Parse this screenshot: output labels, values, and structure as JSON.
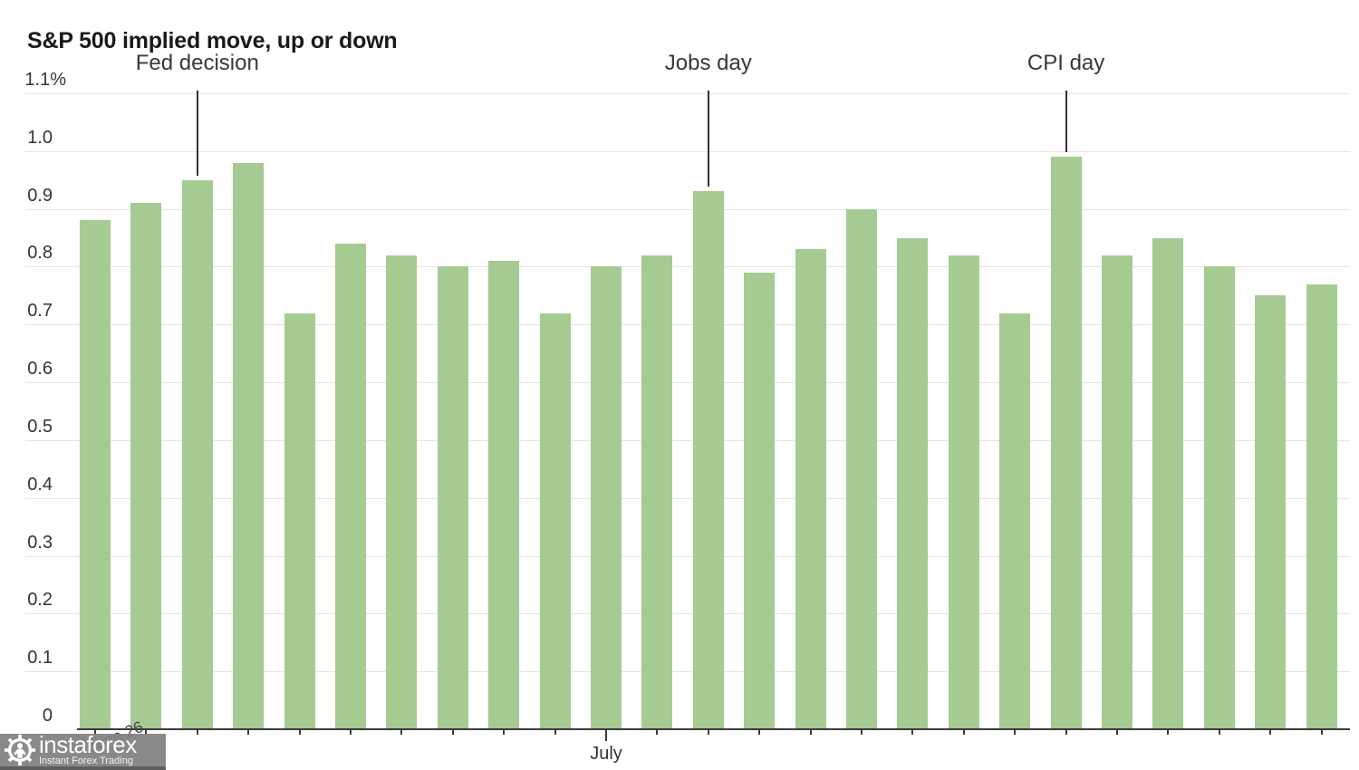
{
  "title": "S&P 500 implied move, up or down",
  "watermark": {
    "brand": "instaforex",
    "tagline": "Instant Forex Trading"
  },
  "chart_data": {
    "type": "bar",
    "title": "S&P 500 implied move, up or down",
    "unit": "percent",
    "ylim": [
      0,
      1.1
    ],
    "ytick_labels": [
      "0",
      "0.1",
      "0.2",
      "0.3",
      "0.4",
      "0.5",
      "0.6",
      "0.7",
      "0.8",
      "0.9",
      "1.0",
      "1.1%"
    ],
    "grid": "horizontal",
    "legend": "none",
    "bar_color": "#a5cb92",
    "values": [
      0.88,
      0.91,
      0.95,
      0.98,
      0.72,
      0.84,
      0.82,
      0.8,
      0.81,
      0.72,
      0.8,
      0.82,
      0.93,
      0.79,
      0.83,
      0.9,
      0.85,
      0.82,
      0.72,
      0.99,
      0.82,
      0.85,
      0.8,
      0.75,
      0.77
    ],
    "annotations": [
      {
        "label": "Fed decision",
        "bar_index": 2
      },
      {
        "label": "Jobs day",
        "bar_index": 12
      },
      {
        "label": "CPI day",
        "bar_index": 19
      }
    ],
    "x_axis": {
      "month_label": "July",
      "month_label_bar_index": 10,
      "partial_label": "June 26"
    }
  }
}
